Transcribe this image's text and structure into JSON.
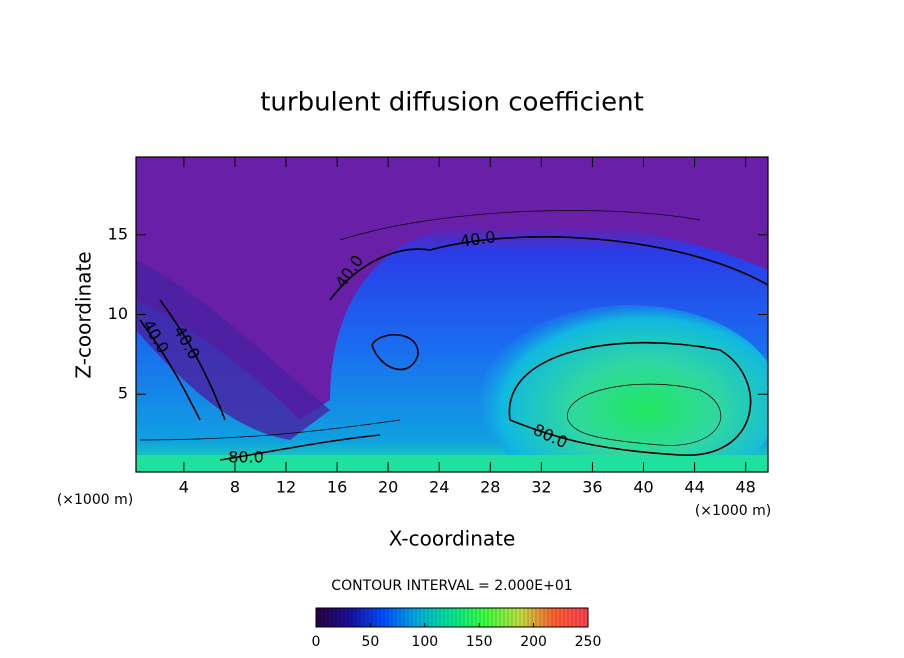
{
  "chart_data": {
    "type": "contour",
    "title": "turbulent diffusion coefficient",
    "x_label": "X-coordinate",
    "y_label": "Z-coordinate",
    "x_unit": "(×1000 m)",
    "y_unit": "(×1000 m)",
    "xlim": [
      0.25,
      49.75
    ],
    "ylim": [
      0.125,
      19.875
    ],
    "xticks": [
      4,
      8,
      12,
      16,
      20,
      24,
      28,
      32,
      36,
      40,
      44,
      48
    ],
    "yticks": [
      5,
      10,
      15
    ],
    "contour_labels": [
      {
        "value": 40,
        "label": "40.0"
      },
      {
        "value": 40,
        "label": "40.0"
      },
      {
        "value": 40,
        "label": "40.0"
      },
      {
        "value": 40,
        "label": "40.0"
      },
      {
        "value": 80,
        "label": "80.0"
      },
      {
        "value": 80,
        "label": "80.0"
      }
    ],
    "contour_interval": "CONTOUR INTERVAL = 2.000E+01",
    "colorbar": {
      "lim": [
        0,
        250
      ],
      "ticks": [
        0,
        50,
        100,
        150,
        200,
        250
      ],
      "colors": [
        "#2a0040",
        "#1a10a0",
        "#0050ff",
        "#00b0e0",
        "#00e890",
        "#40ff40",
        "#c0e040",
        "#ff6030",
        "#ff4050"
      ]
    }
  }
}
